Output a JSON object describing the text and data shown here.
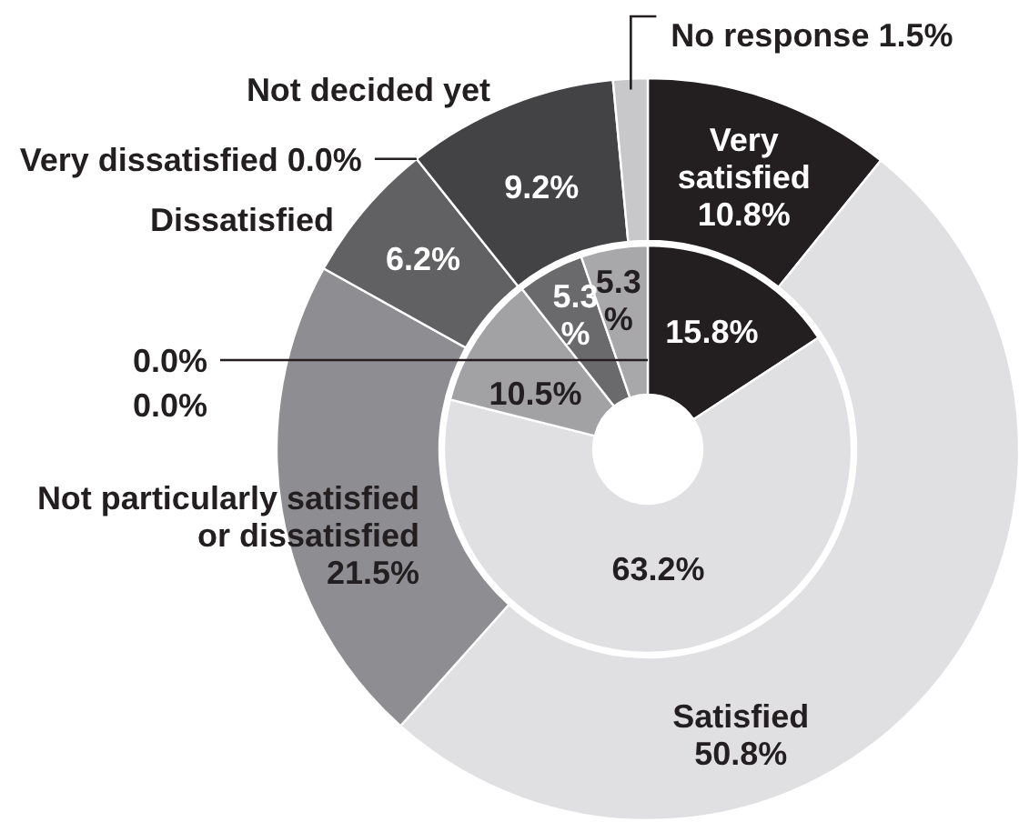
{
  "chart_data": {
    "type": "donut",
    "categories": [
      "Very satisfied",
      "Satisfied",
      "Not particularly satisfied or dissatisfied",
      "Dissatisfied",
      "Very dissatisfied",
      "Not decided yet",
      "No response"
    ],
    "series": [
      {
        "values": [
          10.8,
          50.8,
          21.5,
          6.2,
          0.0,
          9.2,
          1.5
        ],
        "colors": [
          "#231f20",
          "#e0e0e2",
          "#8e8e92",
          "#616164",
          "#58585b",
          "#434346",
          "#c8c8ca"
        ],
        "value_labels": [
          "10.8%",
          "50.8%",
          "21.5%",
          "6.2%",
          "0.0%",
          "9.2%",
          "1.5%"
        ]
      },
      {
        "values": [
          15.8,
          63.2,
          10.5,
          5.3,
          0.0,
          5.3,
          0.0
        ],
        "colors": [
          "#231f20",
          "#e0e0e2",
          "#a2a2a5",
          "#6a6a6d",
          "#58585b",
          "#a8a8ab",
          "#c8c8ca"
        ],
        "value_labels": [
          "15.8%",
          "63.2%",
          "10.5%",
          "5.3%",
          "0.0%",
          "5.3%",
          "0.0%"
        ]
      }
    ]
  }
}
